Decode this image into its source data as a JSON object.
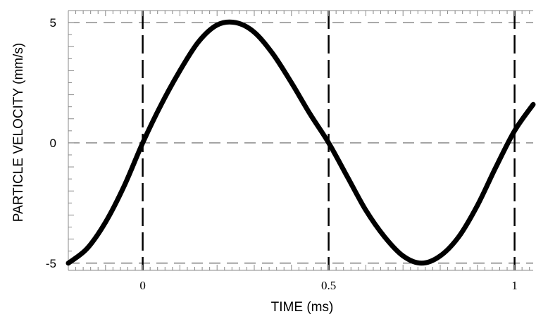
{
  "chart_data": {
    "type": "line",
    "title": "",
    "xlabel": "TIME (ms)",
    "ylabel": "PARTICLE VELOCITY (mm/s)",
    "xlim": [
      -0.2,
      1.05
    ],
    "ylim": [
      -5.3,
      5.5
    ],
    "x_ticks": [
      0,
      0.5,
      1
    ],
    "x_tick_labels": [
      "0",
      "0.5",
      "1"
    ],
    "y_ticks": [
      5,
      0,
      -5
    ],
    "y_tick_labels": [
      "5",
      "0",
      "-5"
    ],
    "grid": "dashed",
    "series": [
      {
        "x": [
          -0.2,
          -0.15,
          -0.1,
          -0.05,
          0,
          0.05,
          0.1,
          0.15,
          0.2,
          0.25,
          0.3,
          0.35,
          0.4,
          0.45,
          0.5,
          0.55,
          0.6,
          0.65,
          0.7,
          0.75,
          0.8,
          0.85,
          0.9,
          0.95,
          1.0,
          1.05
        ],
        "values": [
          -5.0,
          -4.4,
          -3.3,
          -1.8,
          0.0,
          1.6,
          3.0,
          4.2,
          4.9,
          5.0,
          4.6,
          3.7,
          2.5,
          1.2,
          0.0,
          -1.4,
          -2.8,
          -3.9,
          -4.7,
          -5.0,
          -4.7,
          -3.9,
          -2.6,
          -1.0,
          0.5,
          1.6
        ]
      }
    ],
    "colors": {
      "line": "#000000",
      "grid": "#666666",
      "axis": "#888888"
    }
  }
}
